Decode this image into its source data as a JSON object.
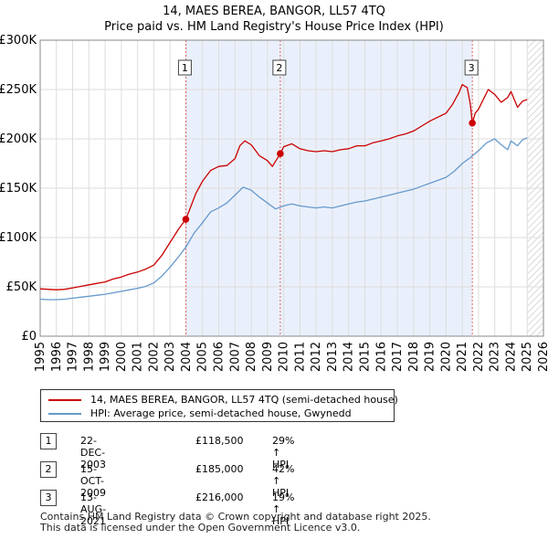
{
  "chart_data": {
    "type": "line",
    "title": "14, MAES BEREA, BANGOR, LL57 4TQ",
    "subtitle": "Price paid vs. HM Land Registry's House Price Index (HPI)",
    "x_range": [
      1995,
      2026
    ],
    "ylim": [
      0,
      300000
    ],
    "x_ticks": [
      "1995",
      "1996",
      "1997",
      "1998",
      "1999",
      "2000",
      "2001",
      "2002",
      "2003",
      "2004",
      "2005",
      "2006",
      "2007",
      "2008",
      "2009",
      "2010",
      "2011",
      "2012",
      "2013",
      "2014",
      "2015",
      "2016",
      "2017",
      "2018",
      "2019",
      "2020",
      "2021",
      "2022",
      "2023",
      "2024",
      "2025",
      "2026"
    ],
    "y_ticks": [
      {
        "value": 0,
        "label": "£0"
      },
      {
        "value": 50000,
        "label": "£50K"
      },
      {
        "value": 100000,
        "label": "£100K"
      },
      {
        "value": 150000,
        "label": "£150K"
      },
      {
        "value": 200000,
        "label": "£200K"
      },
      {
        "value": 250000,
        "label": "£250K"
      },
      {
        "value": 300000,
        "label": "£300K"
      }
    ],
    "grid": true,
    "future_hatch_from": 2025.0,
    "series": [
      {
        "name": "14, MAES BEREA, BANGOR, LL57 4TQ (semi-detached house)",
        "color": "#cc0000",
        "points": [
          [
            1995.0,
            48000
          ],
          [
            1995.5,
            47500
          ],
          [
            1996.0,
            47000
          ],
          [
            1996.5,
            47500
          ],
          [
            1997.0,
            49000
          ],
          [
            1997.5,
            50500
          ],
          [
            1998.0,
            52000
          ],
          [
            1998.5,
            53500
          ],
          [
            1999.0,
            55000
          ],
          [
            1999.5,
            58000
          ],
          [
            2000.0,
            60000
          ],
          [
            2000.5,
            63000
          ],
          [
            2001.0,
            65000
          ],
          [
            2001.5,
            68000
          ],
          [
            2002.0,
            72000
          ],
          [
            2002.5,
            82000
          ],
          [
            2003.0,
            95000
          ],
          [
            2003.5,
            108000
          ],
          [
            2003.97,
            118500
          ],
          [
            2004.2,
            128000
          ],
          [
            2004.6,
            145000
          ],
          [
            2005.0,
            157000
          ],
          [
            2005.5,
            168000
          ],
          [
            2006.0,
            172000
          ],
          [
            2006.5,
            173000
          ],
          [
            2007.0,
            180000
          ],
          [
            2007.3,
            193000
          ],
          [
            2007.6,
            198000
          ],
          [
            2008.0,
            194000
          ],
          [
            2008.5,
            183000
          ],
          [
            2009.0,
            178000
          ],
          [
            2009.3,
            172000
          ],
          [
            2009.79,
            185000
          ],
          [
            2010.0,
            192000
          ],
          [
            2010.5,
            195000
          ],
          [
            2011.0,
            190000
          ],
          [
            2011.5,
            188000
          ],
          [
            2012.0,
            187000
          ],
          [
            2012.5,
            188000
          ],
          [
            2013.0,
            187000
          ],
          [
            2013.5,
            189000
          ],
          [
            2014.0,
            190000
          ],
          [
            2014.5,
            193000
          ],
          [
            2015.0,
            193000
          ],
          [
            2015.5,
            196000
          ],
          [
            2016.0,
            198000
          ],
          [
            2016.5,
            200000
          ],
          [
            2017.0,
            203000
          ],
          [
            2017.5,
            205000
          ],
          [
            2018.0,
            208000
          ],
          [
            2018.5,
            213000
          ],
          [
            2019.0,
            218000
          ],
          [
            2019.5,
            222000
          ],
          [
            2020.0,
            226000
          ],
          [
            2020.4,
            235000
          ],
          [
            2020.8,
            247000
          ],
          [
            2021.0,
            255000
          ],
          [
            2021.3,
            252000
          ],
          [
            2021.5,
            235000
          ],
          [
            2021.62,
            216000
          ],
          [
            2021.8,
            226000
          ],
          [
            2022.0,
            230000
          ],
          [
            2022.3,
            240000
          ],
          [
            2022.6,
            250000
          ],
          [
            2023.0,
            245000
          ],
          [
            2023.4,
            237000
          ],
          [
            2023.8,
            242000
          ],
          [
            2024.0,
            248000
          ],
          [
            2024.4,
            232000
          ],
          [
            2024.7,
            238000
          ],
          [
            2025.0,
            240000
          ]
        ]
      },
      {
        "name": "HPI: Average price, semi-detached house, Gwynedd",
        "color": "#6699cc",
        "points": [
          [
            1995.0,
            37500
          ],
          [
            1995.5,
            37000
          ],
          [
            1996.0,
            37000
          ],
          [
            1996.5,
            37500
          ],
          [
            1997.0,
            38500
          ],
          [
            1997.5,
            39500
          ],
          [
            1998.0,
            40500
          ],
          [
            1998.5,
            41500
          ],
          [
            1999.0,
            42500
          ],
          [
            1999.5,
            44000
          ],
          [
            2000.0,
            45500
          ],
          [
            2000.5,
            47000
          ],
          [
            2001.0,
            48500
          ],
          [
            2001.5,
            50500
          ],
          [
            2002.0,
            54000
          ],
          [
            2002.5,
            61000
          ],
          [
            2003.0,
            70000
          ],
          [
            2003.5,
            80000
          ],
          [
            2004.0,
            91000
          ],
          [
            2004.5,
            105000
          ],
          [
            2005.0,
            115000
          ],
          [
            2005.5,
            126000
          ],
          [
            2006.0,
            130000
          ],
          [
            2006.5,
            135000
          ],
          [
            2007.0,
            143000
          ],
          [
            2007.5,
            151000
          ],
          [
            2008.0,
            148000
          ],
          [
            2008.5,
            141000
          ],
          [
            2009.0,
            135000
          ],
          [
            2009.5,
            129000
          ],
          [
            2010.0,
            132000
          ],
          [
            2010.5,
            134000
          ],
          [
            2011.0,
            132000
          ],
          [
            2011.5,
            131000
          ],
          [
            2012.0,
            130000
          ],
          [
            2012.5,
            131000
          ],
          [
            2013.0,
            130000
          ],
          [
            2013.5,
            132000
          ],
          [
            2014.0,
            134000
          ],
          [
            2014.5,
            136000
          ],
          [
            2015.0,
            137000
          ],
          [
            2015.5,
            139000
          ],
          [
            2016.0,
            141000
          ],
          [
            2016.5,
            143000
          ],
          [
            2017.0,
            145000
          ],
          [
            2017.5,
            147000
          ],
          [
            2018.0,
            149000
          ],
          [
            2018.5,
            152000
          ],
          [
            2019.0,
            155000
          ],
          [
            2019.5,
            158000
          ],
          [
            2020.0,
            161000
          ],
          [
            2020.5,
            167000
          ],
          [
            2021.0,
            175000
          ],
          [
            2021.5,
            181000
          ],
          [
            2022.0,
            188000
          ],
          [
            2022.5,
            196000
          ],
          [
            2023.0,
            200000
          ],
          [
            2023.4,
            194000
          ],
          [
            2023.8,
            189000
          ],
          [
            2024.0,
            198000
          ],
          [
            2024.4,
            193000
          ],
          [
            2024.7,
            199000
          ],
          [
            2025.0,
            201000
          ]
        ]
      }
    ],
    "sales": [
      {
        "label": "1",
        "x": 2003.97,
        "value": 118500
      },
      {
        "label": "2",
        "x": 2009.79,
        "value": 185000
      },
      {
        "label": "3",
        "x": 2021.62,
        "value": 216000
      }
    ]
  },
  "legend": {
    "items": [
      {
        "label": "14, MAES BEREA, BANGOR, LL57 4TQ (semi-detached house)",
        "color": "#cc0000"
      },
      {
        "label": "HPI: Average price, semi-detached house, Gwynedd",
        "color": "#6699cc"
      }
    ]
  },
  "transactions": [
    {
      "num": "1",
      "date": "22-DEC-2003",
      "price": "£118,500",
      "hpi": "29% ↑ HPI"
    },
    {
      "num": "2",
      "date": "15-OCT-2009",
      "price": "£185,000",
      "hpi": "42% ↑ HPI"
    },
    {
      "num": "3",
      "date": "13-AUG-2021",
      "price": "£216,000",
      "hpi": "19% ↑ HPI"
    }
  ],
  "footer": {
    "line1": "Contains HM Land Registry data © Crown copyright and database right 2025.",
    "line2": "This data is licensed under the Open Government Licence v3.0."
  }
}
